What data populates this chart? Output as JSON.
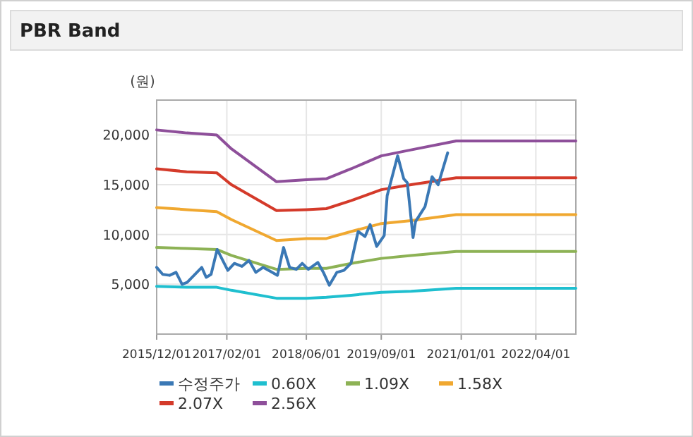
{
  "chart_data": {
    "type": "line",
    "title": "PBR Band",
    "ylabel": "(원)",
    "xlim": [
      "2015-12-01",
      "2022-12-01"
    ],
    "ylim": [
      0,
      23500
    ],
    "xticks": [
      {
        "value": "2015-12-01",
        "label": "2015/12/01"
      },
      {
        "value": "2017-02-01",
        "label": "2017/02/01"
      },
      {
        "value": "2018-06-01",
        "label": "2018/06/01"
      },
      {
        "value": "2019-09-01",
        "label": "2019/09/01"
      },
      {
        "value": "2021-01-01",
        "label": "2021/01/01"
      },
      {
        "value": "2022-04-01",
        "label": "2022/04/01"
      }
    ],
    "yticks": [
      {
        "value": 5000,
        "label": "5,000"
      },
      {
        "value": 10000,
        "label": "10,000"
      },
      {
        "value": 15000,
        "label": "15,000"
      },
      {
        "value": 20000,
        "label": "20,000"
      }
    ],
    "grid": true,
    "legend": "bottom",
    "series": [
      {
        "name": "수정주가",
        "color": "#3a78b5",
        "x": [
          "2015-12-01",
          "2016-01-07",
          "2016-02-18",
          "2016-03-28",
          "2016-05-04",
          "2016-06-04",
          "2016-09-01",
          "2016-09-28",
          "2016-10-28",
          "2016-12-04",
          "2017-02-07",
          "2017-03-19",
          "2017-05-04",
          "2017-06-16",
          "2017-07-28",
          "2017-09-10",
          "2017-10-25",
          "2017-12-07",
          "2018-01-13",
          "2018-02-19",
          "2018-04-01",
          "2018-05-07",
          "2018-06-13",
          "2018-08-10",
          "2018-09-13",
          "2018-10-19",
          "2018-12-04",
          "2019-01-16",
          "2019-02-28",
          "2019-04-13",
          "2019-05-25",
          "2019-06-25",
          "2019-08-04",
          "2019-09-19",
          "2019-10-07",
          "2019-12-10",
          "2020-01-16",
          "2020-02-07",
          "2020-03-13",
          "2020-03-28",
          "2020-05-25",
          "2020-07-07",
          "2020-08-13",
          "2020-10-10"
        ],
        "values": [
          6700,
          6000,
          5900,
          6200,
          5000,
          5200,
          6700,
          5700,
          6000,
          8500,
          6400,
          7100,
          6800,
          7400,
          6200,
          6700,
          6300,
          5900,
          8700,
          6700,
          6500,
          7100,
          6500,
          7200,
          6200,
          4900,
          6200,
          6400,
          7100,
          10300,
          9800,
          11000,
          8800,
          9900,
          13900,
          17900,
          15600,
          15200,
          9700,
          11300,
          12800,
          15800,
          15000,
          18200
        ]
      },
      {
        "name": "0.60X",
        "color": "#1fbfcf",
        "x": [
          "2015-12-01",
          "2016-06-01",
          "2016-12-01",
          "2017-03-01",
          "2017-12-01",
          "2018-06-01",
          "2018-10-01",
          "2019-03-01",
          "2019-09-01",
          "2020-03-01",
          "2020-12-01",
          "2022-12-01"
        ],
        "values": [
          4800,
          4700,
          4700,
          4400,
          3600,
          3600,
          3700,
          3900,
          4200,
          4300,
          4600,
          4600
        ]
      },
      {
        "name": "1.09X",
        "color": "#8db255",
        "x": [
          "2015-12-01",
          "2016-06-01",
          "2016-12-01",
          "2017-03-01",
          "2017-12-01",
          "2018-06-01",
          "2018-10-01",
          "2019-03-01",
          "2019-09-01",
          "2020-03-01",
          "2020-12-01",
          "2022-12-01"
        ],
        "values": [
          8700,
          8600,
          8500,
          7900,
          6500,
          6600,
          6600,
          7100,
          7600,
          7900,
          8300,
          8300
        ]
      },
      {
        "name": "1.58X",
        "color": "#f0a830",
        "x": [
          "2015-12-01",
          "2016-06-01",
          "2016-12-01",
          "2017-03-01",
          "2017-12-01",
          "2018-06-01",
          "2018-10-01",
          "2019-03-01",
          "2019-09-01",
          "2020-03-01",
          "2020-12-01",
          "2022-12-01"
        ],
        "values": [
          12700,
          12500,
          12300,
          11500,
          9400,
          9600,
          9600,
          10300,
          11100,
          11400,
          12000,
          12000
        ]
      },
      {
        "name": "2.07X",
        "color": "#d43a2a",
        "x": [
          "2015-12-01",
          "2016-06-01",
          "2016-12-01",
          "2017-03-01",
          "2017-12-01",
          "2018-06-01",
          "2018-10-01",
          "2019-03-01",
          "2019-09-01",
          "2020-03-01",
          "2020-12-01",
          "2022-12-01"
        ],
        "values": [
          16600,
          16300,
          16200,
          15000,
          12400,
          12500,
          12600,
          13400,
          14500,
          15000,
          15700,
          15700
        ]
      },
      {
        "name": "2.56X",
        "color": "#8e4f9a",
        "x": [
          "2015-12-01",
          "2016-06-01",
          "2016-12-01",
          "2017-03-01",
          "2017-12-01",
          "2018-06-01",
          "2018-10-01",
          "2019-03-01",
          "2019-09-01",
          "2020-03-01",
          "2020-12-01",
          "2022-12-01"
        ],
        "values": [
          20500,
          20200,
          20000,
          18600,
          15300,
          15500,
          15600,
          16600,
          17900,
          18500,
          19400,
          19400
        ]
      }
    ]
  }
}
